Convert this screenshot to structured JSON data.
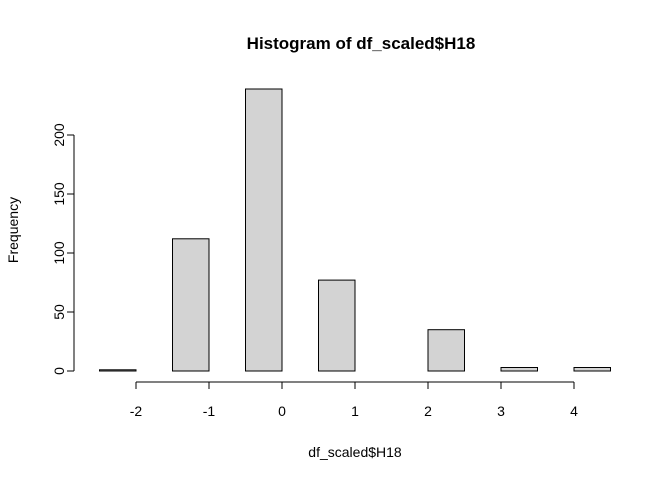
{
  "chart_data": {
    "type": "bar",
    "title": "Histogram of df_scaled$H18",
    "xlabel": "df_scaled$H18",
    "ylabel": "Frequency",
    "bar_color": "#d3d3d3",
    "bin_width": 0.5,
    "bins": [
      {
        "start": -2.5,
        "end": -2.0,
        "count": 1
      },
      {
        "start": -2.0,
        "end": -1.5,
        "count": 0
      },
      {
        "start": -1.5,
        "end": -1.0,
        "count": 112
      },
      {
        "start": -1.0,
        "end": -0.5,
        "count": 0
      },
      {
        "start": -0.5,
        "end": 0.0,
        "count": 239
      },
      {
        "start": 0.0,
        "end": 0.5,
        "count": 0
      },
      {
        "start": 0.5,
        "end": 1.0,
        "count": 77
      },
      {
        "start": 1.0,
        "end": 1.5,
        "count": 0
      },
      {
        "start": 1.5,
        "end": 2.0,
        "count": 0
      },
      {
        "start": 2.0,
        "end": 2.5,
        "count": 35
      },
      {
        "start": 2.5,
        "end": 3.0,
        "count": 0
      },
      {
        "start": 3.0,
        "end": 3.5,
        "count": 3
      },
      {
        "start": 3.5,
        "end": 4.0,
        "count": 0
      },
      {
        "start": 4.0,
        "end": 4.5,
        "count": 3
      }
    ],
    "xticks": [
      -2,
      -1,
      0,
      1,
      2,
      3,
      4
    ],
    "yticks": [
      0,
      50,
      100,
      150,
      200
    ],
    "xlim": [
      -2.5,
      4.5
    ],
    "ylim": [
      0,
      239
    ],
    "grid": false
  }
}
